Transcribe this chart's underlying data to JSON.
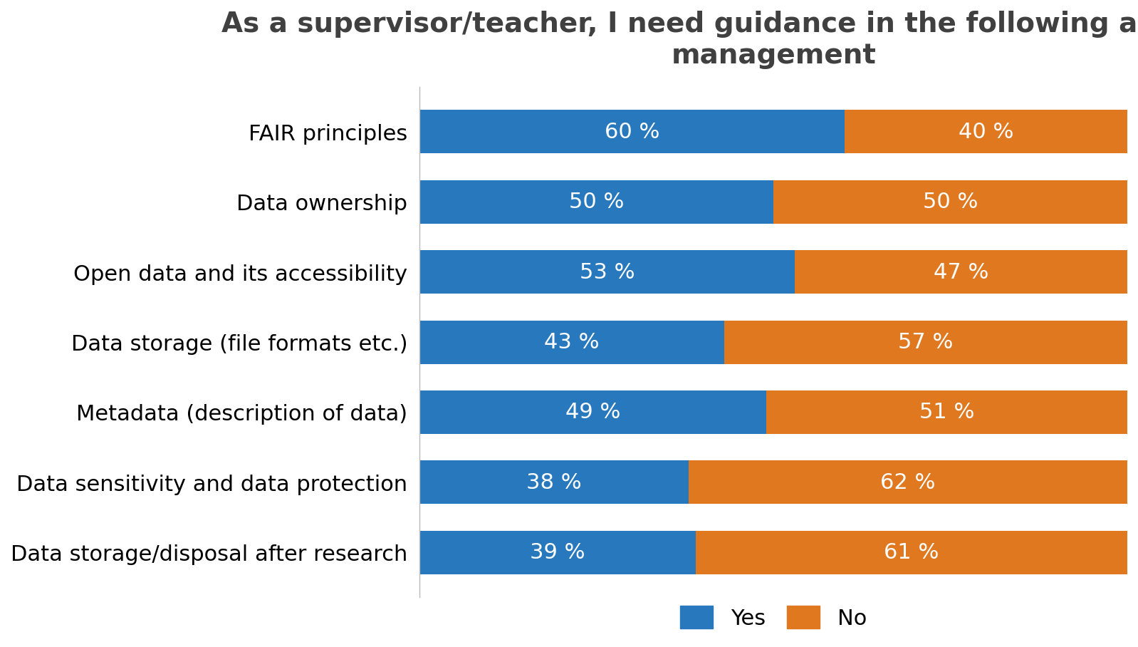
{
  "title": "As a supervisor/teacher, I need guidance in the following areas of data\nmanagement",
  "categories": [
    "Data storage/disposal after research",
    "Data sensitivity and data protection",
    "Metadata (description of data)",
    "Data storage (file formats etc.)",
    "Open data and its accessibility",
    "Data ownership",
    "FAIR principles"
  ],
  "yes_values": [
    39,
    38,
    49,
    43,
    53,
    50,
    60
  ],
  "no_values": [
    61,
    62,
    51,
    57,
    47,
    50,
    40
  ],
  "yes_color": "#2878BE",
  "no_color": "#E07820",
  "bar_height": 0.62,
  "title_fontsize": 28,
  "tick_fontsize": 22,
  "legend_fontsize": 22,
  "value_fontsize": 22,
  "background_color": "#ffffff",
  "xlim": [
    0,
    100
  ]
}
